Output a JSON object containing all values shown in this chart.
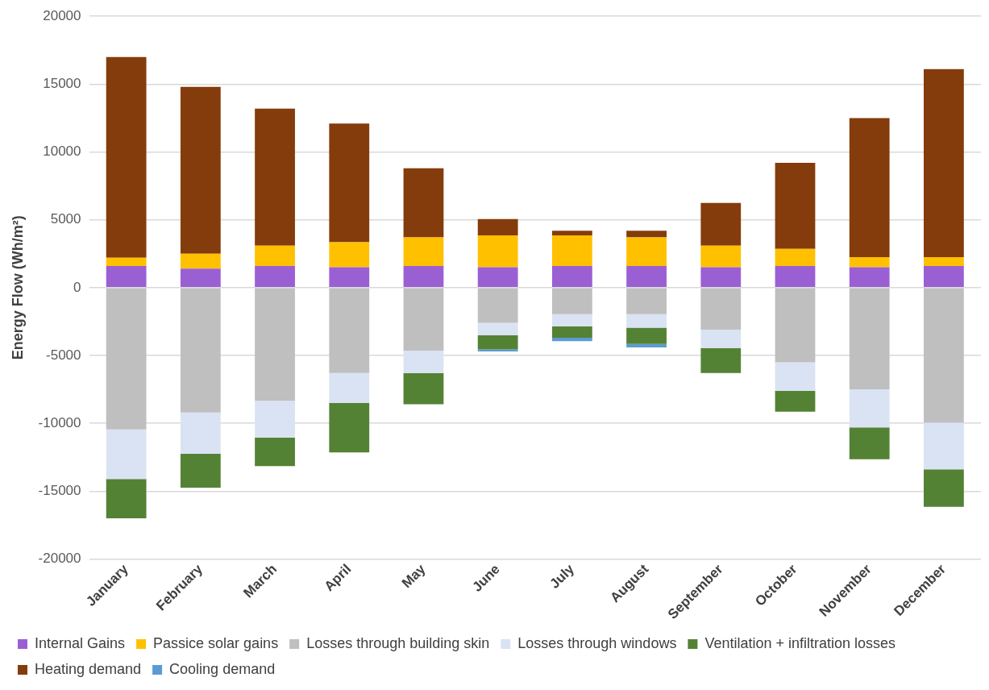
{
  "chart_data": {
    "type": "bar",
    "stacked": true,
    "ylabel": "Energy Flow (Wh/m²)",
    "categories": [
      "January",
      "February",
      "March",
      "April",
      "May",
      "June",
      "July",
      "August",
      "September",
      "October",
      "November",
      "December"
    ],
    "series": [
      {
        "name": "Internal Gains",
        "color": "#9b5fd4",
        "values": [
          1600,
          1400,
          1600,
          1500,
          1600,
          1500,
          1600,
          1600,
          1500,
          1600,
          1500,
          1600
        ]
      },
      {
        "name": "Passice solar gains",
        "color": "#ffc000",
        "values": [
          600,
          1100,
          1500,
          1850,
          2100,
          2350,
          2250,
          2100,
          1600,
          1250,
          750,
          650
        ]
      },
      {
        "name": "Losses through building skin",
        "color": "#bfbfbf",
        "values": [
          -10450,
          -9200,
          -8350,
          -6300,
          -4650,
          -2600,
          -1950,
          -1950,
          -3100,
          -5500,
          -7500,
          -9950
        ]
      },
      {
        "name": "Losses through windows",
        "color": "#dae3f3",
        "values": [
          -3650,
          -3050,
          -2700,
          -2200,
          -1650,
          -900,
          -900,
          -1000,
          -1350,
          -2100,
          -2800,
          -3450
        ]
      },
      {
        "name": "Ventilation + infiltration losses",
        "color": "#548235",
        "values": [
          -2900,
          -2500,
          -2100,
          -3650,
          -2300,
          -1050,
          -850,
          -1200,
          -1850,
          -1550,
          -2350,
          -2750
        ]
      },
      {
        "name": "Heating demand",
        "color": "#843c0c",
        "values": [
          14800,
          12300,
          10100,
          8750,
          5100,
          1200,
          350,
          500,
          3150,
          6350,
          10250,
          13850
        ]
      },
      {
        "name": "Cooling demand",
        "color": "#5b9bd5",
        "values": [
          0,
          0,
          0,
          0,
          0,
          -150,
          -250,
          -250,
          0,
          0,
          0,
          0
        ]
      }
    ],
    "ylim": [
      -20000,
      20000
    ],
    "yticks": [
      -20000,
      -15000,
      -10000,
      -5000,
      0,
      5000,
      10000,
      15000,
      20000
    ],
    "grid": "y",
    "legend": "bottom"
  }
}
